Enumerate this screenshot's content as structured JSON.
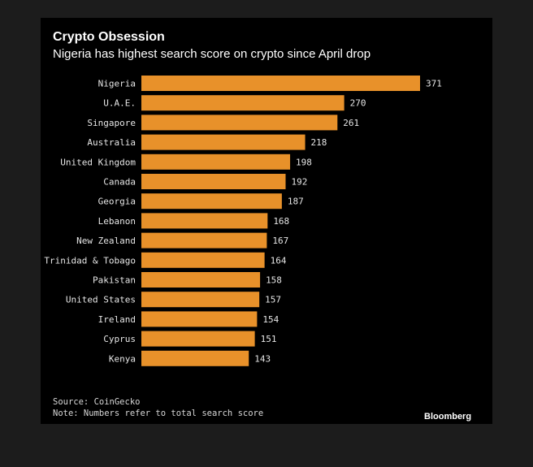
{
  "colors": {
    "background": "#000000",
    "outer_frame": "#1c1c1c",
    "bar": "#e8912a",
    "text": "#ffffff"
  },
  "chart_data": {
    "type": "bar",
    "orientation": "horizontal",
    "title": "Crypto Obsession",
    "subtitle": "Nigeria has highest search score on crypto since April drop",
    "categories": [
      "Nigeria",
      "U.A.E.",
      "Singapore",
      "Australia",
      "United Kingdom",
      "Canada",
      "Georgia",
      "Lebanon",
      "New Zealand",
      "Trinidad & Tobago",
      "Pakistan",
      "United States",
      "Ireland",
      "Cyprus",
      "Kenya"
    ],
    "values": [
      371,
      270,
      261,
      218,
      198,
      192,
      187,
      168,
      167,
      164,
      158,
      157,
      154,
      151,
      143
    ],
    "xlim": [
      0,
      371
    ],
    "grid": false,
    "legend": "none",
    "data_labels": true
  },
  "footer": {
    "source": "Source: CoinGecko",
    "note": "Note: Numbers refer to total search score",
    "brand": "Bloomberg"
  }
}
